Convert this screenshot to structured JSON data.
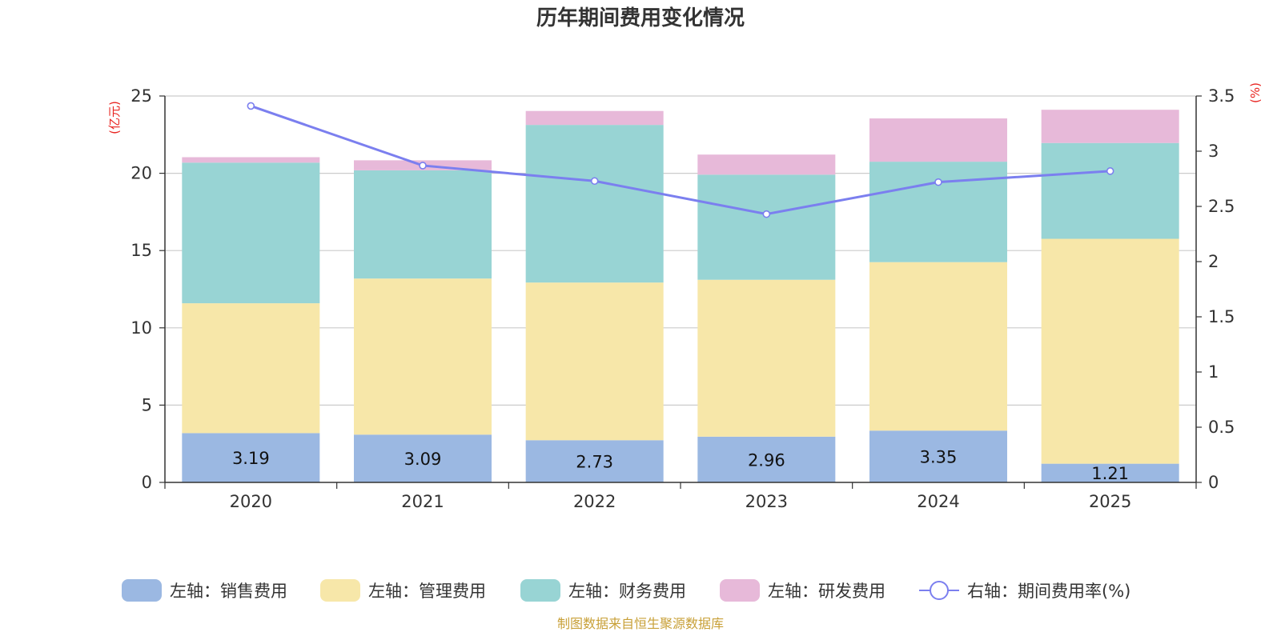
{
  "chart_data": {
    "type": "bar",
    "stacked": true,
    "title": "历年期间费用变化情况",
    "categories": [
      "2020",
      "2021",
      "2022",
      "2023",
      "2024",
      "2025"
    ],
    "y_left": {
      "label": "(亿元)",
      "ylim": [
        0,
        25
      ],
      "ticks": [
        "0",
        "5",
        "10",
        "15",
        "20",
        "25"
      ]
    },
    "y_right": {
      "label": "(%)",
      "ylim": [
        0,
        3.5
      ],
      "ticks": [
        "0",
        "0.5",
        "1",
        "1.5",
        "2",
        "2.5",
        "3",
        "3.5"
      ]
    },
    "series": [
      {
        "name": "左轴：销售费用",
        "axis": "left",
        "type": "bar",
        "color": "#9bb8e2",
        "values": [
          3.19,
          3.09,
          2.73,
          2.96,
          3.35,
          1.21
        ],
        "labels": [
          "3.19",
          "3.09",
          "2.73",
          "2.96",
          "3.35",
          "1.21"
        ]
      },
      {
        "name": "左轴：管理费用",
        "axis": "left",
        "type": "bar",
        "color": "#f7e7a9",
        "values": [
          8.4,
          10.1,
          10.2,
          10.15,
          10.9,
          14.55
        ]
      },
      {
        "name": "左轴：财务费用",
        "axis": "left",
        "type": "bar",
        "color": "#98d4d4",
        "values": [
          9.1,
          7.0,
          10.2,
          6.8,
          6.5,
          6.2
        ]
      },
      {
        "name": "左轴：研发费用",
        "axis": "left",
        "type": "bar",
        "color": "#e7b9d9",
        "values": [
          0.35,
          0.65,
          0.9,
          1.3,
          2.8,
          2.15
        ]
      },
      {
        "name": "右轴：期间费用率(%)",
        "axis": "right",
        "type": "line",
        "color": "#7b7fef",
        "values": [
          3.41,
          2.87,
          2.73,
          2.43,
          2.72,
          2.82
        ]
      }
    ],
    "legend_position": "bottom",
    "grid": true
  },
  "source": "制图数据来自恒生聚源数据库",
  "colors": {
    "axis_label": "#e8231f",
    "source": "#c8a038",
    "grid": "#cccccc",
    "axis": "#333333"
  }
}
